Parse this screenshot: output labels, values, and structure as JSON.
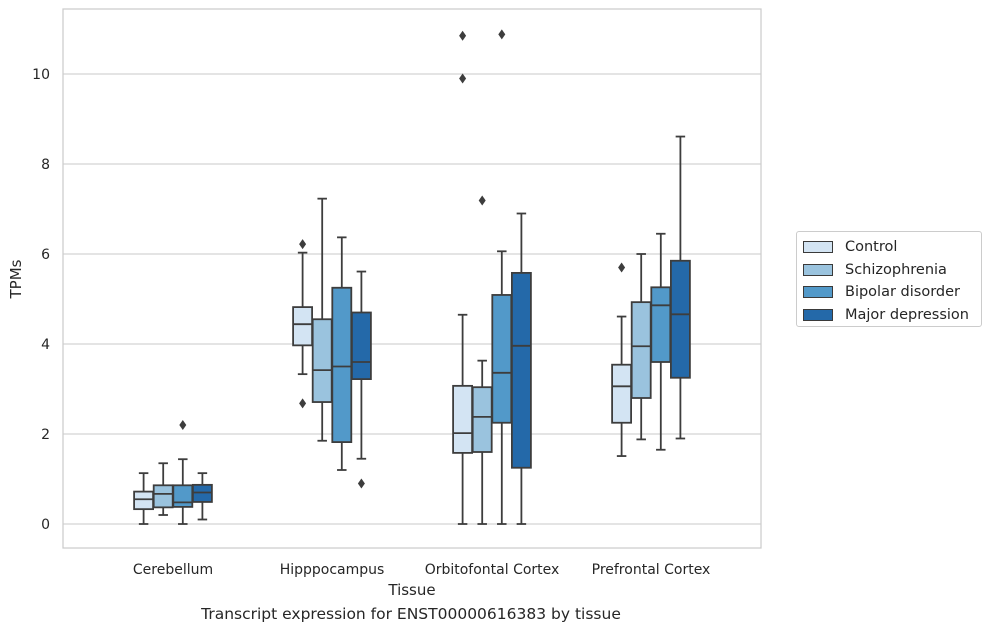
{
  "chart_data": {
    "type": "box",
    "caption": "Transcript expression for ENST00000616383 by tissue",
    "xlabel": "Tissue",
    "ylabel": "TPMs",
    "ylim": [
      -0.5,
      11.5
    ],
    "yticks": [
      0,
      2,
      4,
      6,
      8,
      10
    ],
    "grid": true,
    "legend_position": "right",
    "categories": [
      "Cerebellum",
      "Hipppocampus",
      "Orbitofontal Cortex",
      "Prefrontal Cortex"
    ],
    "series": [
      {
        "name": "Control",
        "color": "#d3e4f3",
        "boxes": [
          {
            "whislo": 0.0,
            "q1": 0.33,
            "med": 0.55,
            "q3": 0.72,
            "whishi": 1.13,
            "fliers": []
          },
          {
            "whislo": 3.33,
            "q1": 3.97,
            "med": 4.44,
            "q3": 4.82,
            "whishi": 6.03,
            "fliers": [
              6.22,
              2.68
            ]
          },
          {
            "whislo": 0.0,
            "q1": 1.58,
            "med": 2.02,
            "q3": 3.07,
            "whishi": 4.65,
            "fliers": [
              10.85,
              9.9
            ]
          },
          {
            "whislo": 1.51,
            "q1": 2.25,
            "med": 3.06,
            "q3": 3.54,
            "whishi": 4.61,
            "fliers": [
              5.7
            ]
          }
        ]
      },
      {
        "name": "Schizophrenia",
        "color": "#9ac3de",
        "boxes": [
          {
            "whislo": 0.2,
            "q1": 0.37,
            "med": 0.67,
            "q3": 0.86,
            "whishi": 1.35,
            "fliers": []
          },
          {
            "whislo": 1.85,
            "q1": 2.71,
            "med": 3.42,
            "q3": 4.55,
            "whishi": 7.23,
            "fliers": []
          },
          {
            "whislo": 0.0,
            "q1": 1.6,
            "med": 2.38,
            "q3": 3.04,
            "whishi": 3.63,
            "fliers": [
              7.19
            ]
          },
          {
            "whislo": 1.88,
            "q1": 2.8,
            "med": 3.95,
            "q3": 4.93,
            "whishi": 6.0,
            "fliers": []
          }
        ]
      },
      {
        "name": "Bipolar disorder",
        "color": "#5299c9",
        "boxes": [
          {
            "whislo": 0.0,
            "q1": 0.38,
            "med": 0.48,
            "q3": 0.86,
            "whishi": 1.44,
            "fliers": [
              2.2
            ]
          },
          {
            "whislo": 1.2,
            "q1": 1.82,
            "med": 3.5,
            "q3": 5.25,
            "whishi": 6.37,
            "fliers": []
          },
          {
            "whislo": 0.0,
            "q1": 2.25,
            "med": 3.36,
            "q3": 5.09,
            "whishi": 6.06,
            "fliers": [
              10.88
            ]
          },
          {
            "whislo": 1.65,
            "q1": 3.6,
            "med": 4.86,
            "q3": 5.26,
            "whishi": 6.45,
            "fliers": []
          }
        ]
      },
      {
        "name": "Major depression",
        "color": "#2469a9",
        "boxes": [
          {
            "whislo": 0.1,
            "q1": 0.49,
            "med": 0.7,
            "q3": 0.87,
            "whishi": 1.13,
            "fliers": []
          },
          {
            "whislo": 1.45,
            "q1": 3.22,
            "med": 3.6,
            "q3": 4.7,
            "whishi": 5.61,
            "fliers": [
              0.9
            ]
          },
          {
            "whislo": 0.0,
            "q1": 1.25,
            "med": 3.96,
            "q3": 5.58,
            "whishi": 6.9,
            "fliers": []
          },
          {
            "whislo": 1.9,
            "q1": 3.25,
            "med": 4.66,
            "q3": 5.85,
            "whishi": 8.61,
            "fliers": []
          }
        ]
      }
    ]
  }
}
